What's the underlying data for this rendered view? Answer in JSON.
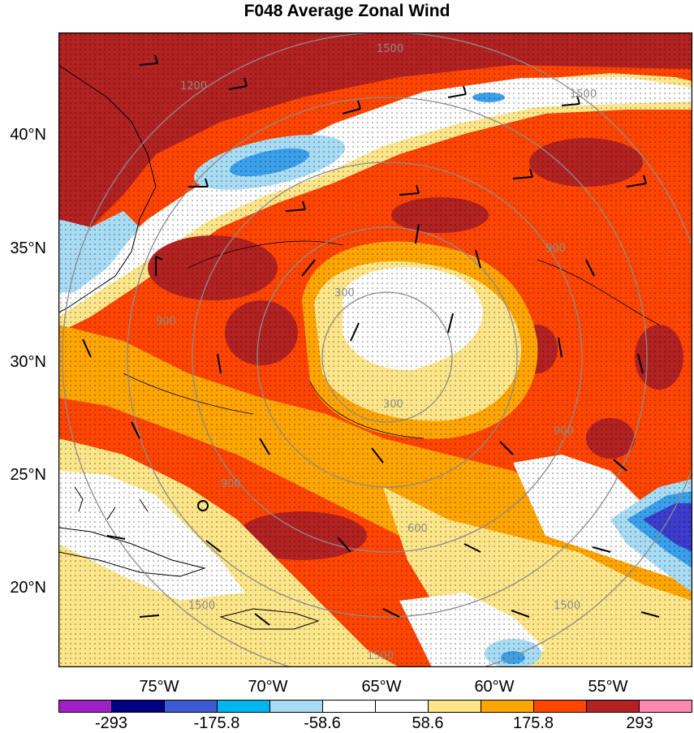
{
  "title": "F048 Average Zonal Wind",
  "map": {
    "lat_labels": [
      "40°N",
      "35°N",
      "30°N",
      "25°N",
      "20°N"
    ],
    "lon_labels": [
      "75°W",
      "70°W",
      "65°W",
      "60°W",
      "55°W"
    ],
    "contour_labels": [
      "1500",
      "1200",
      "1500",
      "900",
      "300",
      "900",
      "300",
      "900",
      "900",
      "600",
      "1500",
      "1500",
      "1500"
    ],
    "colors": {
      "dark_red": "#b22222",
      "red_orange": "#ff4500",
      "orange": "#ffa500",
      "yellow": "#fde68a",
      "white": "#ffffff",
      "light_blue": "#a8dcf5",
      "blue": "#3aa0ea",
      "dark_blue": "#3c3ccd"
    }
  },
  "colorbar": {
    "colors": [
      "#a020c8",
      "#000080",
      "#3c5ad2",
      "#00b4f0",
      "#a8dcf5",
      "#ffffff",
      "#ffffff",
      "#fde68a",
      "#ffa500",
      "#ff4500",
      "#b22222",
      "#ff88b0"
    ],
    "labels": [
      "-293",
      "-175.8",
      "-58.6",
      "58.6",
      "175.8",
      "293"
    ]
  }
}
